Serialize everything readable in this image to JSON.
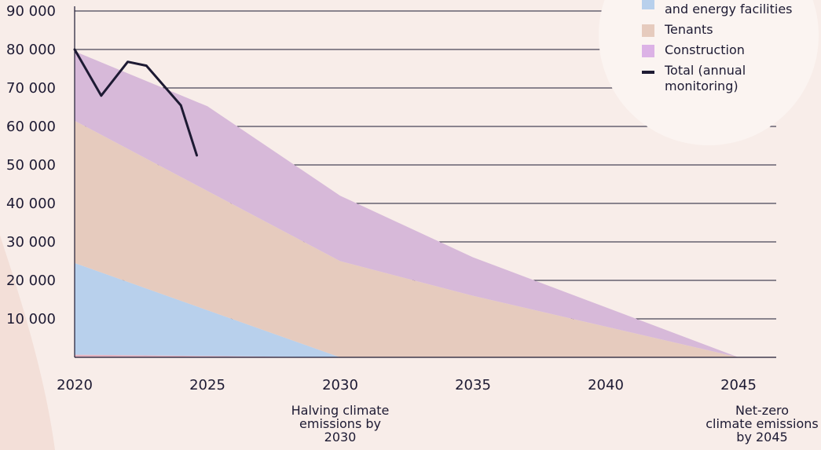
{
  "chart_data": {
    "type": "area",
    "x_ticks": [
      2020,
      2025,
      2030,
      2035,
      2040,
      2045
    ],
    "y_ticks": [
      10000,
      20000,
      30000,
      40000,
      50000,
      60000,
      70000,
      80000,
      90000
    ],
    "y_tick_labels": [
      "10 000",
      "20 000",
      "30 000",
      "40 000",
      "50 000",
      "60 000",
      "70 000",
      "80 000",
      "90 000"
    ],
    "ylim": [
      0,
      90000
    ],
    "xlim": [
      2020,
      2046.5
    ],
    "grid": "horizontal",
    "legend_position": "top-right",
    "stacked_series": [
      {
        "name": "",
        "color": "#e3b4c2",
        "x": [
          2020,
          2030,
          2045
        ],
        "values": [
          700,
          0,
          0
        ]
      },
      {
        "name": "…and energy facilities",
        "color": "#b8d0ec",
        "x": [
          2020,
          2030,
          2045
        ],
        "values": [
          23800,
          0,
          0
        ]
      },
      {
        "name": "Tenants",
        "color": "#e6cbbe",
        "x": [
          2020,
          2025,
          2030,
          2035,
          2045
        ],
        "values": [
          37000,
          31000,
          25000,
          16000,
          0
        ]
      },
      {
        "name": "Construction",
        "color": "#d7b9d9",
        "x": [
          2020,
          2025,
          2030,
          2035,
          2045
        ],
        "values": [
          18000,
          22000,
          17000,
          10000,
          0
        ]
      }
    ],
    "line_series": [
      {
        "name": "Total (annual monitoring)",
        "color": "#1d1a33",
        "x": [
          2020,
          2021,
          2022,
          2022.7,
          2024,
          2024.6
        ],
        "values": [
          80000,
          68000,
          76800,
          75800,
          65500,
          52500
        ]
      }
    ],
    "annotations": [
      {
        "x": 2030,
        "lines": [
          "Halving climate",
          "emissions by",
          "2030"
        ]
      },
      {
        "x": 2045,
        "lines": [
          "Net-zero",
          "climate emissions",
          "by 2045"
        ]
      }
    ],
    "legend": [
      {
        "label_lines": [
          "and energy facilities"
        ],
        "color": "#b8d0ec",
        "kind": "box",
        "partially_visible": true
      },
      {
        "label_lines": [
          "Tenants"
        ],
        "color": "#e6cbbe",
        "kind": "box"
      },
      {
        "label_lines": [
          "Construction"
        ],
        "color": "#dcb2e6",
        "kind": "box"
      },
      {
        "label_lines": [
          "Total (annual",
          "monitoring)"
        ],
        "color": "#1d1a33",
        "kind": "line"
      }
    ]
  }
}
